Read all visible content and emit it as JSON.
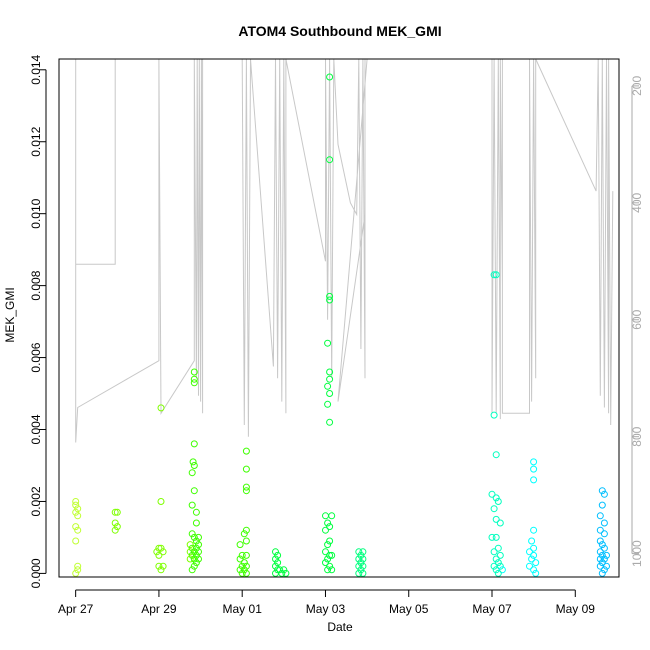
{
  "chart_data": {
    "type": "scatter",
    "title": "ATOM4 Southbound MEK_GMI",
    "xlabel": "Date",
    "ylabel": "MEK_GMI",
    "x_ticks": [
      "Apr 27",
      "Apr 29",
      "May 01",
      "May 03",
      "May 05",
      "May 07",
      "May 09"
    ],
    "x_tick_days": [
      0,
      2,
      4,
      6,
      8,
      10,
      12
    ],
    "xlim_days": [
      -0.4,
      13.05
    ],
    "ylim": [
      -0.0001,
      0.0143
    ],
    "y_ticks": [
      "0.000",
      "0.002",
      "0.004",
      "0.006",
      "0.008",
      "0.010",
      "0.012",
      "0.014"
    ],
    "y_tick_values": [
      0,
      0.002,
      0.004,
      0.006,
      0.008,
      0.01,
      0.012,
      0.014
    ],
    "y2_ticks": [
      "200",
      "400",
      "600",
      "800",
      "1000"
    ],
    "y2_tick_values": [
      200,
      400,
      600,
      800,
      1000
    ],
    "y2lim": [
      154,
      1040
    ],
    "y2_reversed": true,
    "colors": {
      "altitude_trace": "#c8c8c8",
      "axis": "#000000",
      "right_axis": "#aaaaaa",
      "palette": [
        "#c0ff33",
        "#7fff00",
        "#3fff00",
        "#00ff3f",
        "#00ff7f",
        "#00ffbf",
        "#00ffff",
        "#00bfff"
      ]
    },
    "points": [
      {
        "x": 0.0,
        "y": 0.002
      },
      {
        "x": 0.0,
        "y": 0.0019
      },
      {
        "x": 0.05,
        "y": 0.0018
      },
      {
        "x": 0.0,
        "y": 0.0017
      },
      {
        "x": 0.05,
        "y": 0.0016
      },
      {
        "x": 0.0,
        "y": 0.0013
      },
      {
        "x": 0.05,
        "y": 0.0012
      },
      {
        "x": 0.0,
        "y": 0.0009
      },
      {
        "x": 0.05,
        "y": 0.0002
      },
      {
        "x": 0.05,
        "y": 0.0001
      },
      {
        "x": 0.0,
        "y": 0.0
      },
      {
        "x": 0.95,
        "y": 0.0017
      },
      {
        "x": 1.0,
        "y": 0.0017
      },
      {
        "x": 0.95,
        "y": 0.0014
      },
      {
        "x": 1.0,
        "y": 0.0013
      },
      {
        "x": 0.95,
        "y": 0.0012
      },
      {
        "x": 2.05,
        "y": 0.0046
      },
      {
        "x": 2.05,
        "y": 0.002
      },
      {
        "x": 2.0,
        "y": 0.0007
      },
      {
        "x": 2.05,
        "y": 0.0007
      },
      {
        "x": 2.1,
        "y": 0.0006
      },
      {
        "x": 1.95,
        "y": 0.0006
      },
      {
        "x": 2.0,
        "y": 0.0005
      },
      {
        "x": 2.0,
        "y": 0.0002
      },
      {
        "x": 2.05,
        "y": 0.0001
      },
      {
        "x": 2.1,
        "y": 0.0002
      },
      {
        "x": 2.85,
        "y": 0.0056
      },
      {
        "x": 2.85,
        "y": 0.0054
      },
      {
        "x": 2.85,
        "y": 0.0053
      },
      {
        "x": 2.85,
        "y": 0.0036
      },
      {
        "x": 2.82,
        "y": 0.0031
      },
      {
        "x": 2.85,
        "y": 0.003
      },
      {
        "x": 2.8,
        "y": 0.0028
      },
      {
        "x": 2.85,
        "y": 0.0023
      },
      {
        "x": 2.8,
        "y": 0.0019
      },
      {
        "x": 2.9,
        "y": 0.0017
      },
      {
        "x": 2.9,
        "y": 0.0014
      },
      {
        "x": 2.8,
        "y": 0.0011
      },
      {
        "x": 2.85,
        "y": 0.001
      },
      {
        "x": 2.95,
        "y": 0.001
      },
      {
        "x": 2.9,
        "y": 0.0009
      },
      {
        "x": 2.75,
        "y": 0.0008
      },
      {
        "x": 2.95,
        "y": 0.0008
      },
      {
        "x": 2.8,
        "y": 0.0007
      },
      {
        "x": 2.9,
        "y": 0.0007
      },
      {
        "x": 2.75,
        "y": 0.0006
      },
      {
        "x": 2.85,
        "y": 0.0006
      },
      {
        "x": 2.95,
        "y": 0.0006
      },
      {
        "x": 2.8,
        "y": 0.0005
      },
      {
        "x": 2.9,
        "y": 0.0005
      },
      {
        "x": 2.75,
        "y": 0.0004
      },
      {
        "x": 2.85,
        "y": 0.0004
      },
      {
        "x": 2.95,
        "y": 0.0004
      },
      {
        "x": 2.9,
        "y": 0.0003
      },
      {
        "x": 2.85,
        "y": 0.0002
      },
      {
        "x": 2.8,
        "y": 0.0001
      },
      {
        "x": 4.1,
        "y": 0.0034
      },
      {
        "x": 4.1,
        "y": 0.0029
      },
      {
        "x": 4.1,
        "y": 0.0024
      },
      {
        "x": 4.1,
        "y": 0.0023
      },
      {
        "x": 4.1,
        "y": 0.0012
      },
      {
        "x": 4.05,
        "y": 0.0011
      },
      {
        "x": 4.1,
        "y": 0.0009
      },
      {
        "x": 3.95,
        "y": 0.0008
      },
      {
        "x": 4.0,
        "y": 0.0005
      },
      {
        "x": 4.1,
        "y": 0.0005
      },
      {
        "x": 3.95,
        "y": 0.0004
      },
      {
        "x": 4.05,
        "y": 0.0003
      },
      {
        "x": 4.0,
        "y": 0.0002
      },
      {
        "x": 4.1,
        "y": 0.0002
      },
      {
        "x": 3.95,
        "y": 0.0001
      },
      {
        "x": 4.05,
        "y": 0.0001
      },
      {
        "x": 4.0,
        "y": 0.0
      },
      {
        "x": 4.1,
        "y": 0.0
      },
      {
        "x": 4.8,
        "y": 0.0006
      },
      {
        "x": 4.85,
        "y": 0.0005
      },
      {
        "x": 4.8,
        "y": 0.0004
      },
      {
        "x": 4.85,
        "y": 0.0003
      },
      {
        "x": 4.8,
        "y": 0.0002
      },
      {
        "x": 4.85,
        "y": 0.0001
      },
      {
        "x": 4.9,
        "y": 0.0001
      },
      {
        "x": 4.95,
        "y": 0.0
      },
      {
        "x": 5.0,
        "y": 0.0001
      },
      {
        "x": 5.05,
        "y": 0.0
      },
      {
        "x": 4.8,
        "y": 0.0
      },
      {
        "x": 6.1,
        "y": 0.0138
      },
      {
        "x": 6.1,
        "y": 0.0115
      },
      {
        "x": 6.1,
        "y": 0.0077
      },
      {
        "x": 6.1,
        "y": 0.0076
      },
      {
        "x": 6.05,
        "y": 0.0064
      },
      {
        "x": 6.1,
        "y": 0.0056
      },
      {
        "x": 6.1,
        "y": 0.0054
      },
      {
        "x": 6.05,
        "y": 0.0052
      },
      {
        "x": 6.1,
        "y": 0.005
      },
      {
        "x": 6.05,
        "y": 0.0047
      },
      {
        "x": 6.1,
        "y": 0.0042
      },
      {
        "x": 6.0,
        "y": 0.0016
      },
      {
        "x": 6.15,
        "y": 0.0016
      },
      {
        "x": 6.05,
        "y": 0.0014
      },
      {
        "x": 6.1,
        "y": 0.0013
      },
      {
        "x": 6.0,
        "y": 0.0012
      },
      {
        "x": 6.1,
        "y": 0.0009
      },
      {
        "x": 6.05,
        "y": 0.0008
      },
      {
        "x": 6.0,
        "y": 0.0006
      },
      {
        "x": 6.1,
        "y": 0.0005
      },
      {
        "x": 6.15,
        "y": 0.0005
      },
      {
        "x": 6.05,
        "y": 0.0004
      },
      {
        "x": 6.0,
        "y": 0.0003
      },
      {
        "x": 6.1,
        "y": 0.0002
      },
      {
        "x": 6.05,
        "y": 0.0001
      },
      {
        "x": 6.15,
        "y": 0.0001
      },
      {
        "x": 6.8,
        "y": 0.0006
      },
      {
        "x": 6.9,
        "y": 0.0006
      },
      {
        "x": 6.85,
        "y": 0.0005
      },
      {
        "x": 6.8,
        "y": 0.0004
      },
      {
        "x": 6.9,
        "y": 0.0004
      },
      {
        "x": 6.85,
        "y": 0.0003
      },
      {
        "x": 6.8,
        "y": 0.0002
      },
      {
        "x": 6.9,
        "y": 0.0002
      },
      {
        "x": 6.85,
        "y": 0.0001
      },
      {
        "x": 6.8,
        "y": 0.0
      },
      {
        "x": 6.9,
        "y": 0.0
      },
      {
        "x": 10.05,
        "y": 0.0083
      },
      {
        "x": 10.1,
        "y": 0.0083
      },
      {
        "x": 10.05,
        "y": 0.0044
      },
      {
        "x": 10.1,
        "y": 0.0033
      },
      {
        "x": 10.0,
        "y": 0.0022
      },
      {
        "x": 10.1,
        "y": 0.0021
      },
      {
        "x": 10.15,
        "y": 0.002
      },
      {
        "x": 10.05,
        "y": 0.0018
      },
      {
        "x": 10.1,
        "y": 0.0015
      },
      {
        "x": 10.2,
        "y": 0.0014
      },
      {
        "x": 10.0,
        "y": 0.001
      },
      {
        "x": 10.1,
        "y": 0.001
      },
      {
        "x": 10.15,
        "y": 0.0007
      },
      {
        "x": 10.05,
        "y": 0.0006
      },
      {
        "x": 10.2,
        "y": 0.0005
      },
      {
        "x": 10.1,
        "y": 0.0004
      },
      {
        "x": 10.15,
        "y": 0.0003
      },
      {
        "x": 10.05,
        "y": 0.0002
      },
      {
        "x": 10.2,
        "y": 0.0002
      },
      {
        "x": 10.1,
        "y": 0.0001
      },
      {
        "x": 10.25,
        "y": 0.0001
      },
      {
        "x": 10.15,
        "y": 0.0
      },
      {
        "x": 11.0,
        "y": 0.0031
      },
      {
        "x": 11.0,
        "y": 0.0029
      },
      {
        "x": 11.0,
        "y": 0.0026
      },
      {
        "x": 11.0,
        "y": 0.0012
      },
      {
        "x": 10.95,
        "y": 0.0009
      },
      {
        "x": 11.0,
        "y": 0.0007
      },
      {
        "x": 10.9,
        "y": 0.0006
      },
      {
        "x": 11.0,
        "y": 0.0005
      },
      {
        "x": 10.95,
        "y": 0.0004
      },
      {
        "x": 11.05,
        "y": 0.0003
      },
      {
        "x": 10.9,
        "y": 0.0002
      },
      {
        "x": 11.0,
        "y": 0.0001
      },
      {
        "x": 11.05,
        "y": 0.0
      },
      {
        "x": 12.65,
        "y": 0.0023
      },
      {
        "x": 12.7,
        "y": 0.0022
      },
      {
        "x": 12.65,
        "y": 0.0019
      },
      {
        "x": 12.6,
        "y": 0.0016
      },
      {
        "x": 12.7,
        "y": 0.0014
      },
      {
        "x": 12.6,
        "y": 0.0012
      },
      {
        "x": 12.7,
        "y": 0.0011
      },
      {
        "x": 12.6,
        "y": 0.0009
      },
      {
        "x": 12.65,
        "y": 0.0008
      },
      {
        "x": 12.7,
        "y": 0.0007
      },
      {
        "x": 12.6,
        "y": 0.0006
      },
      {
        "x": 12.65,
        "y": 0.0005
      },
      {
        "x": 12.75,
        "y": 0.0005
      },
      {
        "x": 12.6,
        "y": 0.0004
      },
      {
        "x": 12.7,
        "y": 0.0004
      },
      {
        "x": 12.65,
        "y": 0.0003
      },
      {
        "x": 12.75,
        "y": 0.0002
      },
      {
        "x": 12.6,
        "y": 0.0002
      },
      {
        "x": 12.7,
        "y": 0.0001
      },
      {
        "x": 12.65,
        "y": 0.0
      }
    ],
    "altitude_trace": [
      [
        0.0,
        154
      ],
      [
        0.0,
        505
      ],
      [
        0.95,
        505
      ],
      [
        0.95,
        154
      ],
      [
        0.0,
        154
      ],
      [
        0.0,
        810
      ],
      [
        0.05,
        750
      ],
      [
        2.0,
        670
      ],
      [
        2.0,
        154
      ],
      [
        2.05,
        760
      ],
      [
        2.85,
        670
      ],
      [
        2.85,
        154
      ],
      [
        2.9,
        700
      ],
      [
        2.92,
        154
      ],
      [
        2.95,
        730
      ],
      [
        2.97,
        154
      ],
      [
        3.0,
        740
      ],
      [
        3.02,
        154
      ],
      [
        3.05,
        760
      ],
      [
        3.05,
        154
      ],
      [
        2.6,
        154
      ],
      [
        4.0,
        154
      ],
      [
        4.05,
        780
      ],
      [
        4.1,
        154
      ],
      [
        4.15,
        800
      ],
      [
        4.2,
        154
      ],
      [
        4.75,
        680
      ],
      [
        4.8,
        154
      ],
      [
        4.85,
        700
      ],
      [
        4.9,
        154
      ],
      [
        4.95,
        740
      ],
      [
        5.0,
        154
      ],
      [
        5.05,
        760
      ],
      [
        5.05,
        154
      ],
      [
        6.0,
        500
      ],
      [
        6.0,
        154
      ],
      [
        6.05,
        600
      ],
      [
        6.1,
        154
      ],
      [
        6.15,
        700
      ],
      [
        6.2,
        154
      ],
      [
        6.3,
        300
      ],
      [
        6.6,
        400
      ],
      [
        6.75,
        420
      ],
      [
        6.8,
        154
      ],
      [
        6.85,
        650
      ],
      [
        6.9,
        154
      ],
      [
        6.95,
        700
      ],
      [
        6.95,
        154
      ],
      [
        6.95,
        420
      ],
      [
        6.3,
        740
      ],
      [
        7.0,
        154
      ],
      [
        10.0,
        154
      ],
      [
        10.0,
        760
      ],
      [
        10.05,
        154
      ],
      [
        10.1,
        760
      ],
      [
        10.15,
        154
      ],
      [
        10.2,
        770
      ],
      [
        10.2,
        154
      ],
      [
        10.25,
        540
      ],
      [
        10.25,
        154
      ],
      [
        10.25,
        760
      ],
      [
        10.9,
        760
      ],
      [
        10.9,
        154
      ],
      [
        10.95,
        740
      ],
      [
        11.0,
        154
      ],
      [
        11.05,
        700
      ],
      [
        11.05,
        154
      ],
      [
        12.5,
        380
      ],
      [
        12.55,
        154
      ],
      [
        12.6,
        730
      ],
      [
        12.65,
        154
      ],
      [
        12.7,
        750
      ],
      [
        12.75,
        154
      ],
      [
        12.8,
        760
      ],
      [
        12.8,
        154
      ],
      [
        12.85,
        780
      ],
      [
        12.9,
        380
      ]
    ]
  }
}
